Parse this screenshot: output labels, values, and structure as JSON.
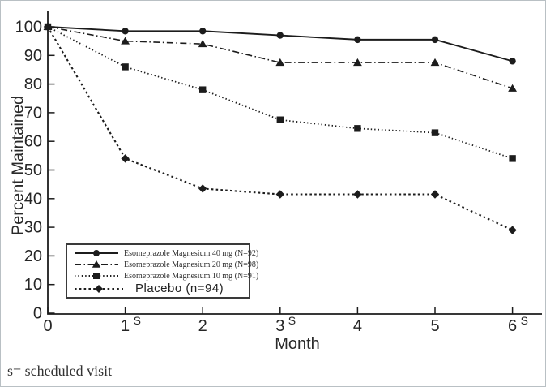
{
  "figure": {
    "footnote": "s= scheduled visit"
  },
  "colors": {
    "ink": "#1c1c1c",
    "text": "#262626",
    "background": "#ffffff",
    "frame_border": "#b9c0c4"
  },
  "chart_data": {
    "type": "line",
    "title": "",
    "xlabel": "Month",
    "ylabel": "Percent Maintained",
    "x": [
      0,
      1,
      2,
      3,
      4,
      5,
      6
    ],
    "x_tick_labels": [
      "0",
      "1",
      "2",
      "3",
      "4",
      "5",
      "6"
    ],
    "scheduled_visit_months": [
      1,
      3,
      6
    ],
    "scheduled_visit_marker": "S",
    "y_ticks": [
      0,
      10,
      20,
      30,
      40,
      50,
      60,
      70,
      80,
      90,
      100
    ],
    "ylim": [
      0,
      105
    ],
    "xlim": [
      0,
      6.4
    ],
    "grid": false,
    "legend_position": "lower-left",
    "footnote": "s= scheduled visit",
    "series": [
      {
        "name": "Esomeprazole Magnesium 40 mg (N=92)",
        "marker": "circle",
        "line": "solid",
        "values": [
          100,
          98.5,
          98.5,
          97,
          95.5,
          95.5,
          88
        ]
      },
      {
        "name": "Esomeprazole Magnesium 20 mg (N=98)",
        "marker": "triangle",
        "line": "dash-dot",
        "values": [
          100,
          95,
          94,
          87.5,
          87.5,
          87.5,
          78.5
        ]
      },
      {
        "name": "Esomeprazole Magnesium 10 mg (N=91)",
        "marker": "square",
        "line": "dense-dotted",
        "values": [
          100,
          86,
          78,
          67.5,
          64.5,
          63,
          54
        ]
      },
      {
        "name": "Placebo (n=94)",
        "marker": "diamond",
        "line": "dotted",
        "values": [
          100,
          54,
          43.5,
          41.5,
          41.5,
          41.5,
          29
        ]
      }
    ]
  }
}
